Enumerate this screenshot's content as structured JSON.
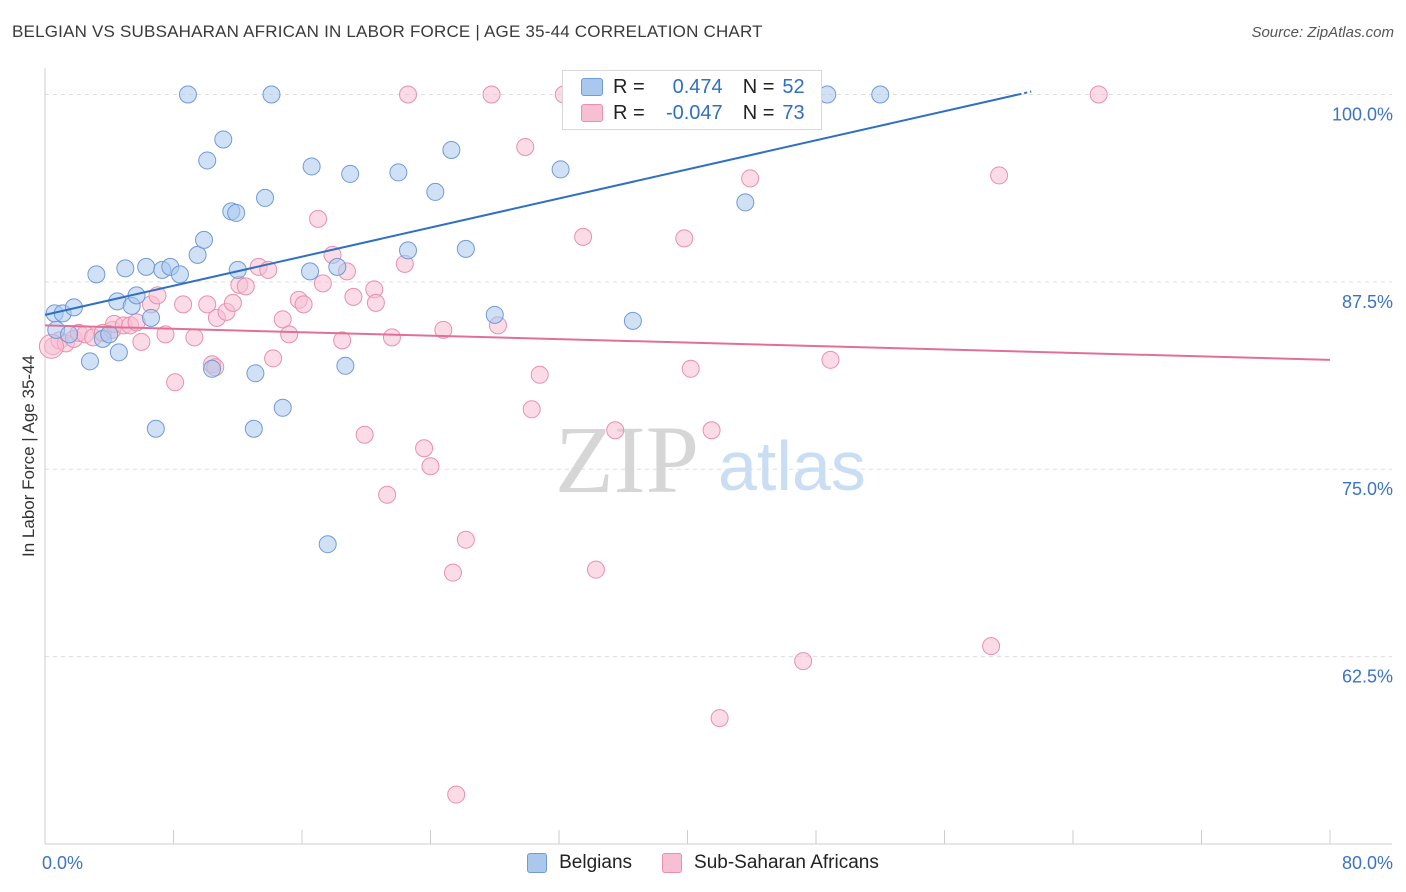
{
  "header": {
    "title": "BELGIAN VS SUBSAHARAN AFRICAN IN LABOR FORCE | AGE 35-44 CORRELATION CHART",
    "source": "Source: ZipAtlas.com"
  },
  "watermark": {
    "zip": "ZIP",
    "atlas": "atlas"
  },
  "stats_legend": [
    {
      "r_label": "R =",
      "r_value": "0.474",
      "n_label": "N =",
      "n_value": "52"
    },
    {
      "r_label": "R =",
      "r_value": "-0.047",
      "n_label": "N =",
      "n_value": "73"
    }
  ],
  "colors": {
    "belgians_fill": "#aac8ee",
    "belgians_stroke": "#6f9ad8",
    "belgians_line": "#2f6fc4",
    "subsaharan_fill": "#f7bfd2",
    "subsaharan_stroke": "#ea8fad",
    "subsaharan_line": "#e0709a",
    "axis_label": "#3b73c7",
    "grid": "#dddddd"
  },
  "chart_data": {
    "type": "scatter",
    "title": "BELGIAN VS SUBSAHARAN AFRICAN IN LABOR FORCE | AGE 35-44 CORRELATION CHART",
    "xlabel": "",
    "ylabel": "In Labor Force | Age 35-44",
    "xlim": [
      0,
      80
    ],
    "ylim": [
      50,
      101.5
    ],
    "x_tick_labels": [
      {
        "value": 0,
        "label": "0.0%"
      },
      {
        "value": 80,
        "label": "80.0%"
      }
    ],
    "y_tick_labels": [
      {
        "value": 100,
        "label": "100.0%"
      },
      {
        "value": 87.5,
        "label": "87.5%"
      },
      {
        "value": 75,
        "label": "75.0%"
      },
      {
        "value": 62.5,
        "label": "62.5%"
      }
    ],
    "grid": "horizontal dashed",
    "legend_position": "bottom-center",
    "series": [
      {
        "name": "Belgians",
        "trend": {
          "x": [
            0.0,
            60.6
          ],
          "y": [
            85.3,
            100.0
          ]
        },
        "points": [
          [
            0.6,
            85.4
          ],
          [
            0.7,
            84.3
          ],
          [
            1.1,
            85.4
          ],
          [
            1.5,
            84.0
          ],
          [
            1.8,
            85.8
          ],
          [
            2.8,
            82.2
          ],
          [
            3.2,
            88.0
          ],
          [
            3.6,
            83.7
          ],
          [
            4.0,
            84.0
          ],
          [
            4.5,
            86.2
          ],
          [
            4.6,
            82.8
          ],
          [
            5.0,
            88.4
          ],
          [
            5.4,
            85.9
          ],
          [
            5.7,
            86.6
          ],
          [
            6.3,
            88.5
          ],
          [
            6.6,
            85.1
          ],
          [
            6.9,
            77.7
          ],
          [
            7.3,
            88.3
          ],
          [
            7.8,
            88.5
          ],
          [
            8.4,
            88.0
          ],
          [
            8.9,
            100.0
          ],
          [
            9.5,
            89.3
          ],
          [
            9.9,
            90.3
          ],
          [
            10.1,
            95.6
          ],
          [
            10.4,
            81.7
          ],
          [
            11.1,
            97.0
          ],
          [
            11.6,
            92.2
          ],
          [
            11.9,
            92.1
          ],
          [
            12.0,
            88.3
          ],
          [
            13.0,
            77.7
          ],
          [
            13.1,
            81.4
          ],
          [
            13.7,
            93.1
          ],
          [
            14.1,
            100.0
          ],
          [
            14.8,
            79.1
          ],
          [
            16.5,
            88.2
          ],
          [
            16.6,
            95.2
          ],
          [
            17.6,
            70.0
          ],
          [
            18.2,
            88.5
          ],
          [
            18.7,
            81.9
          ],
          [
            19.0,
            94.7
          ],
          [
            22.0,
            94.8
          ],
          [
            22.6,
            89.6
          ],
          [
            24.3,
            93.5
          ],
          [
            25.3,
            96.3
          ],
          [
            26.2,
            89.7
          ],
          [
            28.0,
            85.3
          ],
          [
            32.1,
            95.0
          ],
          [
            36.6,
            84.9
          ],
          [
            43.6,
            92.8
          ],
          [
            48.7,
            100.0
          ],
          [
            52.0,
            100.0
          ],
          [
            41.7,
            100.0
          ]
        ]
      },
      {
        "name": "Sub-Saharan Africans",
        "trend": {
          "x": [
            0.0,
            80.0
          ],
          "y": [
            84.6,
            82.3
          ]
        },
        "points": [
          [
            0.5,
            83.2
          ],
          [
            0.9,
            83.6
          ],
          [
            1.3,
            83.4
          ],
          [
            1.8,
            83.7
          ],
          [
            2.1,
            84.1
          ],
          [
            2.5,
            84.0
          ],
          [
            3.0,
            83.8
          ],
          [
            3.6,
            84.1
          ],
          [
            4.2,
            84.3
          ],
          [
            4.3,
            84.7
          ],
          [
            4.9,
            84.6
          ],
          [
            5.3,
            84.6
          ],
          [
            5.7,
            84.8
          ],
          [
            6.0,
            83.5
          ],
          [
            6.6,
            86.0
          ],
          [
            7.0,
            86.6
          ],
          [
            7.5,
            84.0
          ],
          [
            8.1,
            80.8
          ],
          [
            8.6,
            86.0
          ],
          [
            9.3,
            83.8
          ],
          [
            10.1,
            86.0
          ],
          [
            10.4,
            82.0
          ],
          [
            10.6,
            81.8
          ],
          [
            10.7,
            85.1
          ],
          [
            11.3,
            85.5
          ],
          [
            11.7,
            86.1
          ],
          [
            12.1,
            87.3
          ],
          [
            12.5,
            87.2
          ],
          [
            13.3,
            88.5
          ],
          [
            13.9,
            88.3
          ],
          [
            14.2,
            82.4
          ],
          [
            14.8,
            85.0
          ],
          [
            15.2,
            84.0
          ],
          [
            15.8,
            86.3
          ],
          [
            16.1,
            86.0
          ],
          [
            17.0,
            91.7
          ],
          [
            17.3,
            87.4
          ],
          [
            17.9,
            89.3
          ],
          [
            18.5,
            83.6
          ],
          [
            18.8,
            88.2
          ],
          [
            19.2,
            86.5
          ],
          [
            19.9,
            77.3
          ],
          [
            20.5,
            87.0
          ],
          [
            20.6,
            86.1
          ],
          [
            21.3,
            73.3
          ],
          [
            21.6,
            83.8
          ],
          [
            22.4,
            88.7
          ],
          [
            23.6,
            76.4
          ],
          [
            24.0,
            75.2
          ],
          [
            24.8,
            84.3
          ],
          [
            25.4,
            68.1
          ],
          [
            25.6,
            53.3
          ],
          [
            26.2,
            70.3
          ],
          [
            27.8,
            100.0
          ],
          [
            28.2,
            84.6
          ],
          [
            29.9,
            96.5
          ],
          [
            30.3,
            79.0
          ],
          [
            30.8,
            81.3
          ],
          [
            32.3,
            100.0
          ],
          [
            33.5,
            90.5
          ],
          [
            34.3,
            68.3
          ],
          [
            35.5,
            77.6
          ],
          [
            39.8,
            90.4
          ],
          [
            40.2,
            81.7
          ],
          [
            41.5,
            77.6
          ],
          [
            42.0,
            58.4
          ],
          [
            43.9,
            94.4
          ],
          [
            47.2,
            62.2
          ],
          [
            48.9,
            82.3
          ],
          [
            58.9,
            63.2
          ],
          [
            59.4,
            94.6
          ],
          [
            65.6,
            100.0
          ],
          [
            22.6,
            100.0
          ]
        ]
      }
    ]
  },
  "bottom_legend": [
    {
      "label": "Belgians"
    },
    {
      "label": "Sub-Saharan Africans"
    }
  ]
}
